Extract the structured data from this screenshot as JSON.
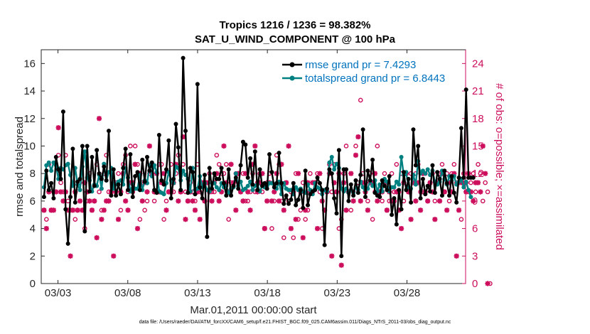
{
  "chart_data": {
    "type": "line",
    "title": "Tropics 1216 / 1236 = 98.382%",
    "subtitle": "SAT_U_WIND_COMPONENT @ 100 hPa",
    "xlabel": "Mar.01,2011 00:00:00 start",
    "ylabel": "rmse and totalspread",
    "y2label": "# of obs: o=possible; ×=assimilated",
    "x_tick_labels": [
      "03/03",
      "03/08",
      "03/13",
      "03/18",
      "03/23",
      "03/28"
    ],
    "x_tick_days": [
      2,
      7,
      12,
      17,
      22,
      27
    ],
    "x_range_days": [
      0.8,
      31.2
    ],
    "ylim": [
      0,
      17
    ],
    "y_ticks": [
      0,
      2,
      4,
      6,
      8,
      10,
      12,
      14,
      16
    ],
    "y2lim": [
      0,
      25.5
    ],
    "y2_ticks": [
      0,
      3,
      6,
      9,
      12,
      15,
      18,
      21,
      24
    ],
    "legend_position": "top-right",
    "series": [
      {
        "name": "rmse grand pr = 7.4293",
        "color": "#000000",
        "values": [
          6.3,
          8.2,
          6.8,
          7.3,
          6.2,
          9.2,
          8.3,
          7.6,
          12.5,
          5.4,
          2.9,
          6.3,
          9.8,
          5.9,
          7.4,
          7.6,
          10.0,
          3.8,
          10.0,
          6.7,
          9.2,
          7.1,
          9.7,
          8.0,
          7.6,
          8.5,
          7.5,
          11.1,
          6.4,
          8.3,
          6.4,
          7.2,
          6.5,
          8.4,
          9.8,
          6.8,
          9.4,
          6.3,
          7.8,
          8.1,
          6.8,
          9.0,
          7.4,
          9.2,
          8.2,
          8.8,
          6.8,
          6.6,
          10.8,
          7.5,
          7.2,
          8.3,
          10.4,
          6.2,
          7.6,
          11.6,
          9.9,
          6.8,
          16.4,
          11.1,
          6.6,
          8.4,
          8.1,
          6.5,
          14.5,
          7.0,
          6.2,
          7.9,
          3.4,
          8.4,
          6.9,
          8.0,
          7.6,
          7.6,
          8.4,
          7.3,
          6.4,
          8.3,
          6.4,
          7.1,
          7.7,
          6.9,
          8.6,
          10.3,
          10.1,
          7.7,
          9.1,
          7.2,
          9.6,
          6.8,
          8.3,
          7.1,
          7.3,
          6.9,
          9.4,
          8.1,
          7.0,
          7.3,
          9.5,
          7.3,
          5.8,
          6.4,
          5.8,
          6.1,
          7.3,
          5.7,
          6.1,
          6.8,
          5.5,
          8.2,
          5.7,
          6.5,
          6.7,
          6.8,
          7.7,
          7.3,
          6.8,
          2.8,
          6.9,
          8.3,
          8.0,
          6.2,
          5.1,
          9.7,
          2.0,
          8.3,
          8.3,
          6.0,
          7.2,
          6.4,
          7.5,
          6.6,
          7.9,
          11.2,
          6.3,
          8.2,
          7.5,
          9.0,
          6.6,
          6.4,
          6.3,
          7.5,
          7.1,
          6.8,
          7.8,
          5.0,
          6.2,
          4.3,
          6.8,
          5.4,
          8.1,
          6.8,
          7.6,
          5.9,
          11.2,
          8.6,
          10.0,
          6.2,
          7.6,
          6.5,
          7.1,
          6.7,
          8.6,
          6.6,
          8.1,
          7.6,
          6.4,
          8.2,
          7.3,
          6.4,
          7.8,
          6.6,
          5.9,
          7.7,
          11.3,
          7.7,
          14.1,
          7.7,
          7.7,
          7.7
        ]
      },
      {
        "name": "totalspread grand pr = 6.8443",
        "color": "#008080",
        "values": [
          7.0,
          8.6,
          8.8,
          8.2,
          8.8,
          8.6,
          7.6,
          8.4,
          8.3,
          8.6,
          8.7,
          7.9,
          7.1,
          8.4,
          7.2,
          6.8,
          8.5,
          9.6,
          7.7,
          7.5,
          6.7,
          7.2,
          7.1,
          7.9,
          6.9,
          8.7,
          7.5,
          8.1,
          8.4,
          6.9,
          7.2,
          7.4,
          7.5,
          7.2,
          8.4,
          7.7,
          6.7,
          7.2,
          6.9,
          6.9,
          7.9,
          6.8,
          7.5,
          7.3,
          8.6,
          7.8,
          8.6,
          8.1,
          6.7,
          6.6,
          6.5,
          7.3,
          8.1,
          7.5,
          7.3,
          8.5,
          8.4,
          7.5,
          8.2,
          7.9,
          7.6,
          6.7,
          8.4,
          6.8,
          6.9,
          7.8,
          7.0,
          7.3,
          6.8,
          6.7,
          7.3,
          7.3,
          7.0,
          6.8,
          7.3,
          7.0,
          7.1,
          6.6,
          6.9,
          7.0,
          8.0,
          7.1,
          7.4,
          6.8,
          6.9,
          7.1,
          7.4,
          6.8,
          7.1,
          7.2,
          6.7,
          7.1,
          7.0,
          7.1,
          7.3,
          7.3,
          7.2,
          6.9,
          7.4,
          6.5,
          7.3,
          6.9,
          6.8,
          6.8,
          6.5,
          7.0,
          6.8,
          6.9,
          6.7,
          6.6,
          7.2,
          6.8,
          6.5,
          7.3,
          7.0,
          6.9,
          6.5,
          6.8,
          6.7,
          8.8,
          9.2,
          8.3,
          8.7,
          8.4,
          6.9,
          6.7,
          6.9,
          6.6,
          6.8,
          6.6,
          7.0,
          6.8,
          7.4,
          7.0,
          6.8,
          6.9,
          7.5,
          7.1,
          7.5,
          6.7,
          7.2,
          6.7,
          7.6,
          7.4,
          6.7,
          7.0,
          7.0,
          7.4,
          7.2,
          9.2,
          7.9,
          8.1,
          7.0,
          6.9,
          7.9,
          7.2,
          8.9,
          8.0,
          8.2,
          8.0,
          8.3,
          7.9,
          8.2,
          7.4,
          7.2,
          7.4,
          8.2,
          7.6,
          7.2,
          7.8,
          7.5,
          7.8,
          7.2,
          7.4,
          7.6,
          7.0,
          7.4,
          6.8,
          6.3
        ]
      },
      {
        "name": "# of obs possible (o)",
        "color": "#CC0E5C",
        "axis": "right",
        "values": [
          8,
          7,
          13,
          8,
          10,
          13,
          14,
          11,
          10,
          14,
          9,
          8,
          8,
          7,
          8,
          11,
          8,
          6,
          9,
          12,
          8,
          9,
          13,
          10,
          8,
          12,
          14,
          10,
          10,
          11,
          11,
          12,
          8,
          13,
          14,
          10,
          15,
          10,
          15,
          13,
          7,
          11,
          8,
          9,
          12,
          13,
          9,
          10,
          13,
          13,
          7,
          9,
          10,
          13,
          10,
          12,
          14,
          10,
          13,
          10,
          9,
          11,
          10,
          9,
          13,
          10,
          11,
          9,
          11,
          12,
          10,
          10,
          14,
          13,
          12,
          12,
          13,
          7,
          11,
          11,
          12,
          12,
          10,
          12,
          9,
          9,
          10,
          12,
          10,
          11,
          12,
          10,
          6,
          11,
          12,
          6,
          9,
          14,
          13,
          9,
          5,
          11,
          9,
          10,
          5,
          12,
          7,
          8,
          11,
          7,
          8,
          12,
          10,
          11,
          12,
          10,
          6,
          8,
          10,
          13,
          10,
          13,
          10,
          6,
          7,
          12,
          15,
          10,
          8,
          10,
          15,
          11,
          20,
          12,
          11,
          9,
          12,
          7,
          10,
          15,
          10,
          9,
          12,
          8,
          9,
          12,
          10,
          13,
          10,
          12,
          9,
          12,
          10,
          12,
          11,
          12,
          13,
          10,
          10,
          12,
          9,
          11,
          12,
          9,
          11,
          12,
          13,
          10,
          12,
          9,
          12,
          13,
          11,
          11,
          7,
          12,
          11,
          10,
          11,
          12,
          10,
          13,
          12,
          9,
          11,
          10,
          0
        ]
      },
      {
        "name": "# of obs assimilated (×)",
        "color": "#CC0E5C",
        "axis": "right",
        "values": [
          8,
          6,
          10,
          8,
          8,
          10,
          17,
          10,
          9,
          10,
          8,
          3,
          8,
          10,
          8,
          9,
          8,
          11,
          10,
          9,
          8,
          9,
          5,
          18,
          7,
          8,
          9,
          9,
          10,
          3,
          10,
          7,
          10,
          12,
          9,
          8,
          11,
          11,
          13,
          6,
          12,
          9,
          11,
          10,
          15,
          12,
          10,
          12,
          10,
          11,
          12,
          8,
          10,
          10,
          11,
          13,
          9,
          10,
          16,
          7,
          9,
          10,
          9,
          8,
          10,
          7,
          11,
          9,
          11,
          10,
          9,
          11,
          12,
          9,
          10,
          15,
          11,
          10,
          13,
          11,
          8,
          12,
          10,
          9,
          12,
          10,
          8,
          13,
          15,
          10,
          11,
          12,
          6,
          9,
          11,
          9,
          10,
          12,
          9,
          13,
          8,
          11,
          15,
          6,
          10,
          7,
          12,
          10,
          5,
          8,
          11,
          10,
          11,
          11,
          6,
          12,
          9,
          8,
          10,
          12,
          3,
          11,
          10,
          12,
          2,
          11,
          8,
          10,
          12,
          9,
          14,
          16,
          9,
          11,
          10,
          8,
          11,
          11,
          12,
          9,
          10,
          10,
          11,
          8,
          10,
          9,
          9,
          10,
          8,
          6,
          11,
          12,
          10,
          7,
          11,
          9,
          11,
          8,
          12,
          10,
          9,
          11,
          10,
          7,
          11,
          9,
          12,
          10,
          8,
          11,
          10,
          12,
          3,
          8,
          11,
          11,
          10,
          12,
          10,
          9,
          11,
          11,
          10,
          15,
          12,
          0
        ]
      }
    ]
  },
  "footer_note": "data file: /Users/raeder/DAI/ATM_forcXX/CAM6_setup/f.e21.FHIST_BGC.f09_025.CAM6assim.011/Diags_NTrS_2011-03/obs_diag_output.nc"
}
